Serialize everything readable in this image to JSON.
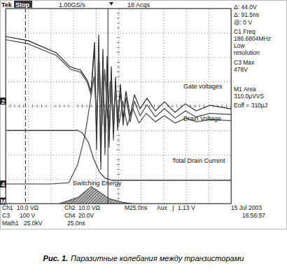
{
  "chart_data": {
    "type": "line",
    "xlim": [
      0,
      250
    ],
    "ylim": [
      -4,
      4
    ],
    "xticks": [
      0,
      25,
      50,
      75,
      100,
      125,
      150,
      175,
      200,
      225,
      250
    ],
    "yticks": [
      -4,
      -3,
      -2,
      -1,
      0,
      1,
      2,
      3,
      4
    ],
    "tick_labels": false,
    "grid": true,
    "series": [
      {
        "name": "Gate voltages",
        "color": "#1a1a1a",
        "x": [
          0,
          24.8,
          55.9,
          71.4,
          83.1,
          90.8,
          94.7,
          98.6,
          100.9,
          103.3,
          105.6,
          107.9,
          110.2,
          112.6,
          114.9,
          117.2,
          119.6,
          121.9,
          124.2,
          127.3,
          130.4,
          133.5,
          138.2,
          142.9,
          149.1,
          156.8,
          166.1,
          176.2,
          187.9,
          199.5,
          211.2,
          226.7,
          250
        ],
        "values": [
          2.85,
          2.68,
          2.19,
          1.61,
          1.47,
          1.04,
          0.6,
          2.62,
          -1.41,
          2.91,
          -2.27,
          2.33,
          -1.7,
          2.04,
          -1.41,
          1.61,
          -1.12,
          1.18,
          -0.69,
          0.89,
          -0.55,
          0.6,
          -0.4,
          0.46,
          -0.12,
          0.32,
          -0.2,
          0.17,
          -0.26,
          0.09,
          -0.2,
          0.03,
          -0.12
        ]
      },
      {
        "color": "#3a3a3a",
        "x": [
          0,
          24.8,
          55.9,
          71.4,
          83.1,
          90.8,
          94.7,
          98.6,
          100.9,
          103.3,
          105.6,
          107.9,
          110.2,
          112.6,
          114.9,
          117.2,
          119.6,
          121.9,
          124.2,
          127.3,
          130.4,
          133.5,
          138.2,
          142.9,
          149.1,
          156.8,
          166.1,
          176.2,
          187.9,
          199.5,
          211.2,
          226.7,
          250
        ],
        "values": [
          2.72,
          2.55,
          2.08,
          1.52,
          1.38,
          0.95,
          0.45,
          2.3,
          -1.8,
          2.6,
          -2.6,
          2.0,
          -2.0,
          1.7,
          -1.7,
          1.3,
          -1.4,
          0.9,
          -1.0,
          0.6,
          -0.8,
          0.35,
          -0.65,
          0.2,
          -0.4,
          0.05,
          -0.45,
          -0.1,
          -0.5,
          -0.2,
          -0.45,
          -0.3,
          -0.35
        ]
      },
      {
        "name": "Drain Voltage",
        "color": "#555555",
        "x": [
          0,
          50,
          70,
          80,
          88,
          94,
          98,
          101,
          104,
          107,
          110,
          113,
          116,
          119,
          122,
          126,
          130,
          135,
          141,
          148,
          156,
          166,
          176,
          188,
          200,
          212,
          227,
          250
        ],
        "values": [
          -3.2,
          -3.2,
          -3.15,
          -2.4,
          -1.2,
          0.2,
          1.2,
          -0.5,
          1.8,
          -0.8,
          1.5,
          -0.5,
          1.0,
          -0.6,
          0.6,
          -0.7,
          0.2,
          -0.8,
          -0.1,
          -0.7,
          -0.3,
          -0.65,
          -0.4,
          -0.7,
          -0.5,
          -0.65,
          -0.55,
          -0.6
        ]
      },
      {
        "name": "Total Drain Current",
        "color": "#444444",
        "x": [
          0,
          80,
          85,
          92,
          98,
          104,
          110,
          118,
          130,
          250
        ],
        "values": [
          -1.0,
          -1.0,
          -1.1,
          -1.5,
          -2.2,
          -2.7,
          -2.95,
          -3.05,
          -3.05,
          -3.05
        ]
      },
      {
        "name": "Switching Energy",
        "type": "area",
        "color": "#333333",
        "x": [
          60,
          80,
          90,
          95,
          105,
          115,
          130,
          140
        ],
        "values": [
          -4,
          -3.75,
          -3.45,
          -3.3,
          -3.55,
          -3.8,
          -3.95,
          -4
        ]
      }
    ],
    "cursors_x": [
      22,
      113.5
    ],
    "channel_markers": [
      {
        "label": "2",
        "level": 0.2
      },
      {
        "label": "4",
        "level": -3.2
      },
      {
        "label": "M",
        "level": -3.9
      }
    ],
    "header": [
      "Tek",
      "Stop",
      "1.00GS/s",
      "18 Acqs"
    ],
    "readouts": [
      "Δ: 44.0V",
      "Δ: 91.5ns",
      "@: 0 V",
      "C1 Freq",
      "186.6804MHz",
      "Low",
      "resolution",
      "C3 Max",
      "478V",
      "M1 Area",
      "310.0µVVS",
      "Eoff = 310µJ"
    ],
    "footer": [
      [
        "Ch1",
        "10.0 VΩ",
        "Ch2",
        "10.0 VΩ",
        "M25.0ns",
        "Aux",
        "∫",
        "1.13 V"
      ],
      [
        "C3",
        "100 V",
        "Ch4",
        "20.0V"
      ],
      [
        "Math1",
        "25.0kV",
        "25.0ns"
      ]
    ],
    "timestamp": [
      "15 Jul 2003",
      "16:56:57"
    ],
    "caption": {
      "label": "Рис. 1.",
      "text": "Паразитные колебания между транзисторами"
    }
  }
}
